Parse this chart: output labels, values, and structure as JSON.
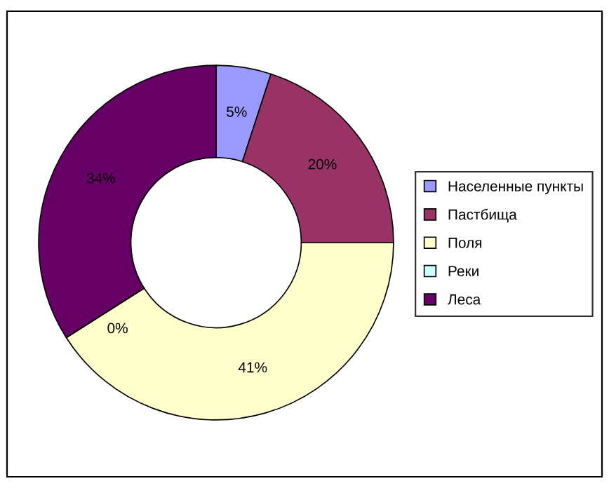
{
  "chart_data": {
    "type": "donut",
    "categories": [
      "Населенные пункты",
      "Пастбища",
      "Поля",
      "Реки",
      "Леса"
    ],
    "values": [
      5,
      20,
      41,
      0,
      34
    ],
    "colors": [
      "#9999ff",
      "#993366",
      "#ffffcc",
      "#ccffff",
      "#660066"
    ],
    "value_labels": [
      "5%",
      "20%",
      "41%",
      "0%",
      "34%"
    ],
    "legend": "right"
  }
}
